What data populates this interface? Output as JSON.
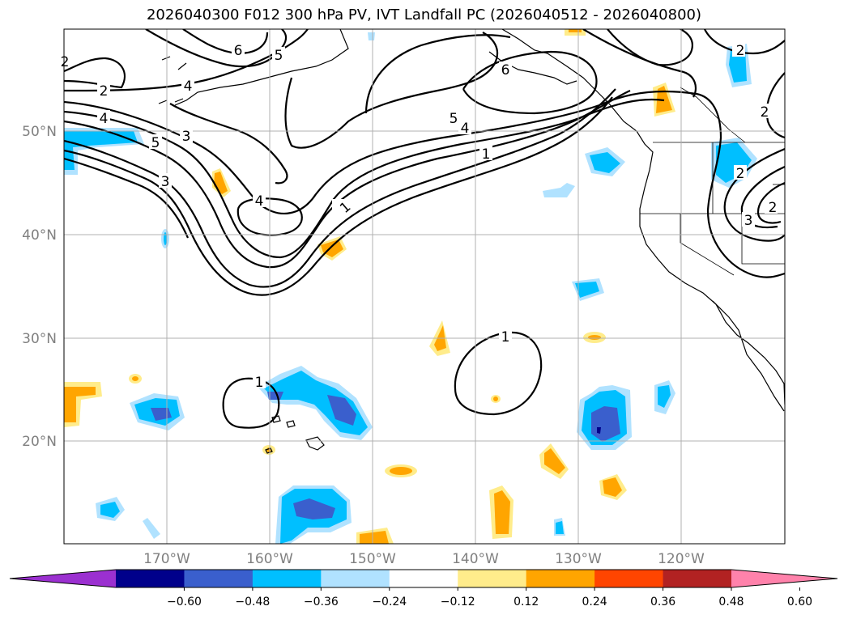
{
  "title": "2026040300 F012 300 hPa PV, IVT Landfall PC (2026040512 - 2026040800)",
  "lat_labels": [
    "50°N",
    "40°N",
    "30°N",
    "20°N"
  ],
  "lon_labels": [
    "170°W",
    "160°W",
    "150°W",
    "140°W",
    "130°W",
    "120°W"
  ],
  "colorbar": {
    "colors": [
      "#9b30d0",
      "#00008b",
      "#3a5fcd",
      "#00bfff",
      "#b0e2ff",
      "#ffffff",
      "#ffec8b",
      "#ffa500",
      "#ff4500",
      "#b22222",
      "#ff82ab"
    ],
    "tick_labels": [
      "−0.60",
      "−0.48",
      "−0.36",
      "−0.24",
      "−0.12",
      "0.12",
      "0.24",
      "0.36",
      "0.48",
      "0.60"
    ]
  },
  "contour_labels": [
    "6",
    "5",
    "4",
    "3",
    "2",
    "1",
    "5",
    "4",
    "3",
    "2",
    "6",
    "5",
    "4",
    "1",
    "2",
    "4",
    "1",
    "1",
    "2",
    "3",
    "2",
    "2"
  ],
  "colors": {
    "land_line": "#000000",
    "grid": "#b0b0b0",
    "label_gray": "#808080"
  }
}
